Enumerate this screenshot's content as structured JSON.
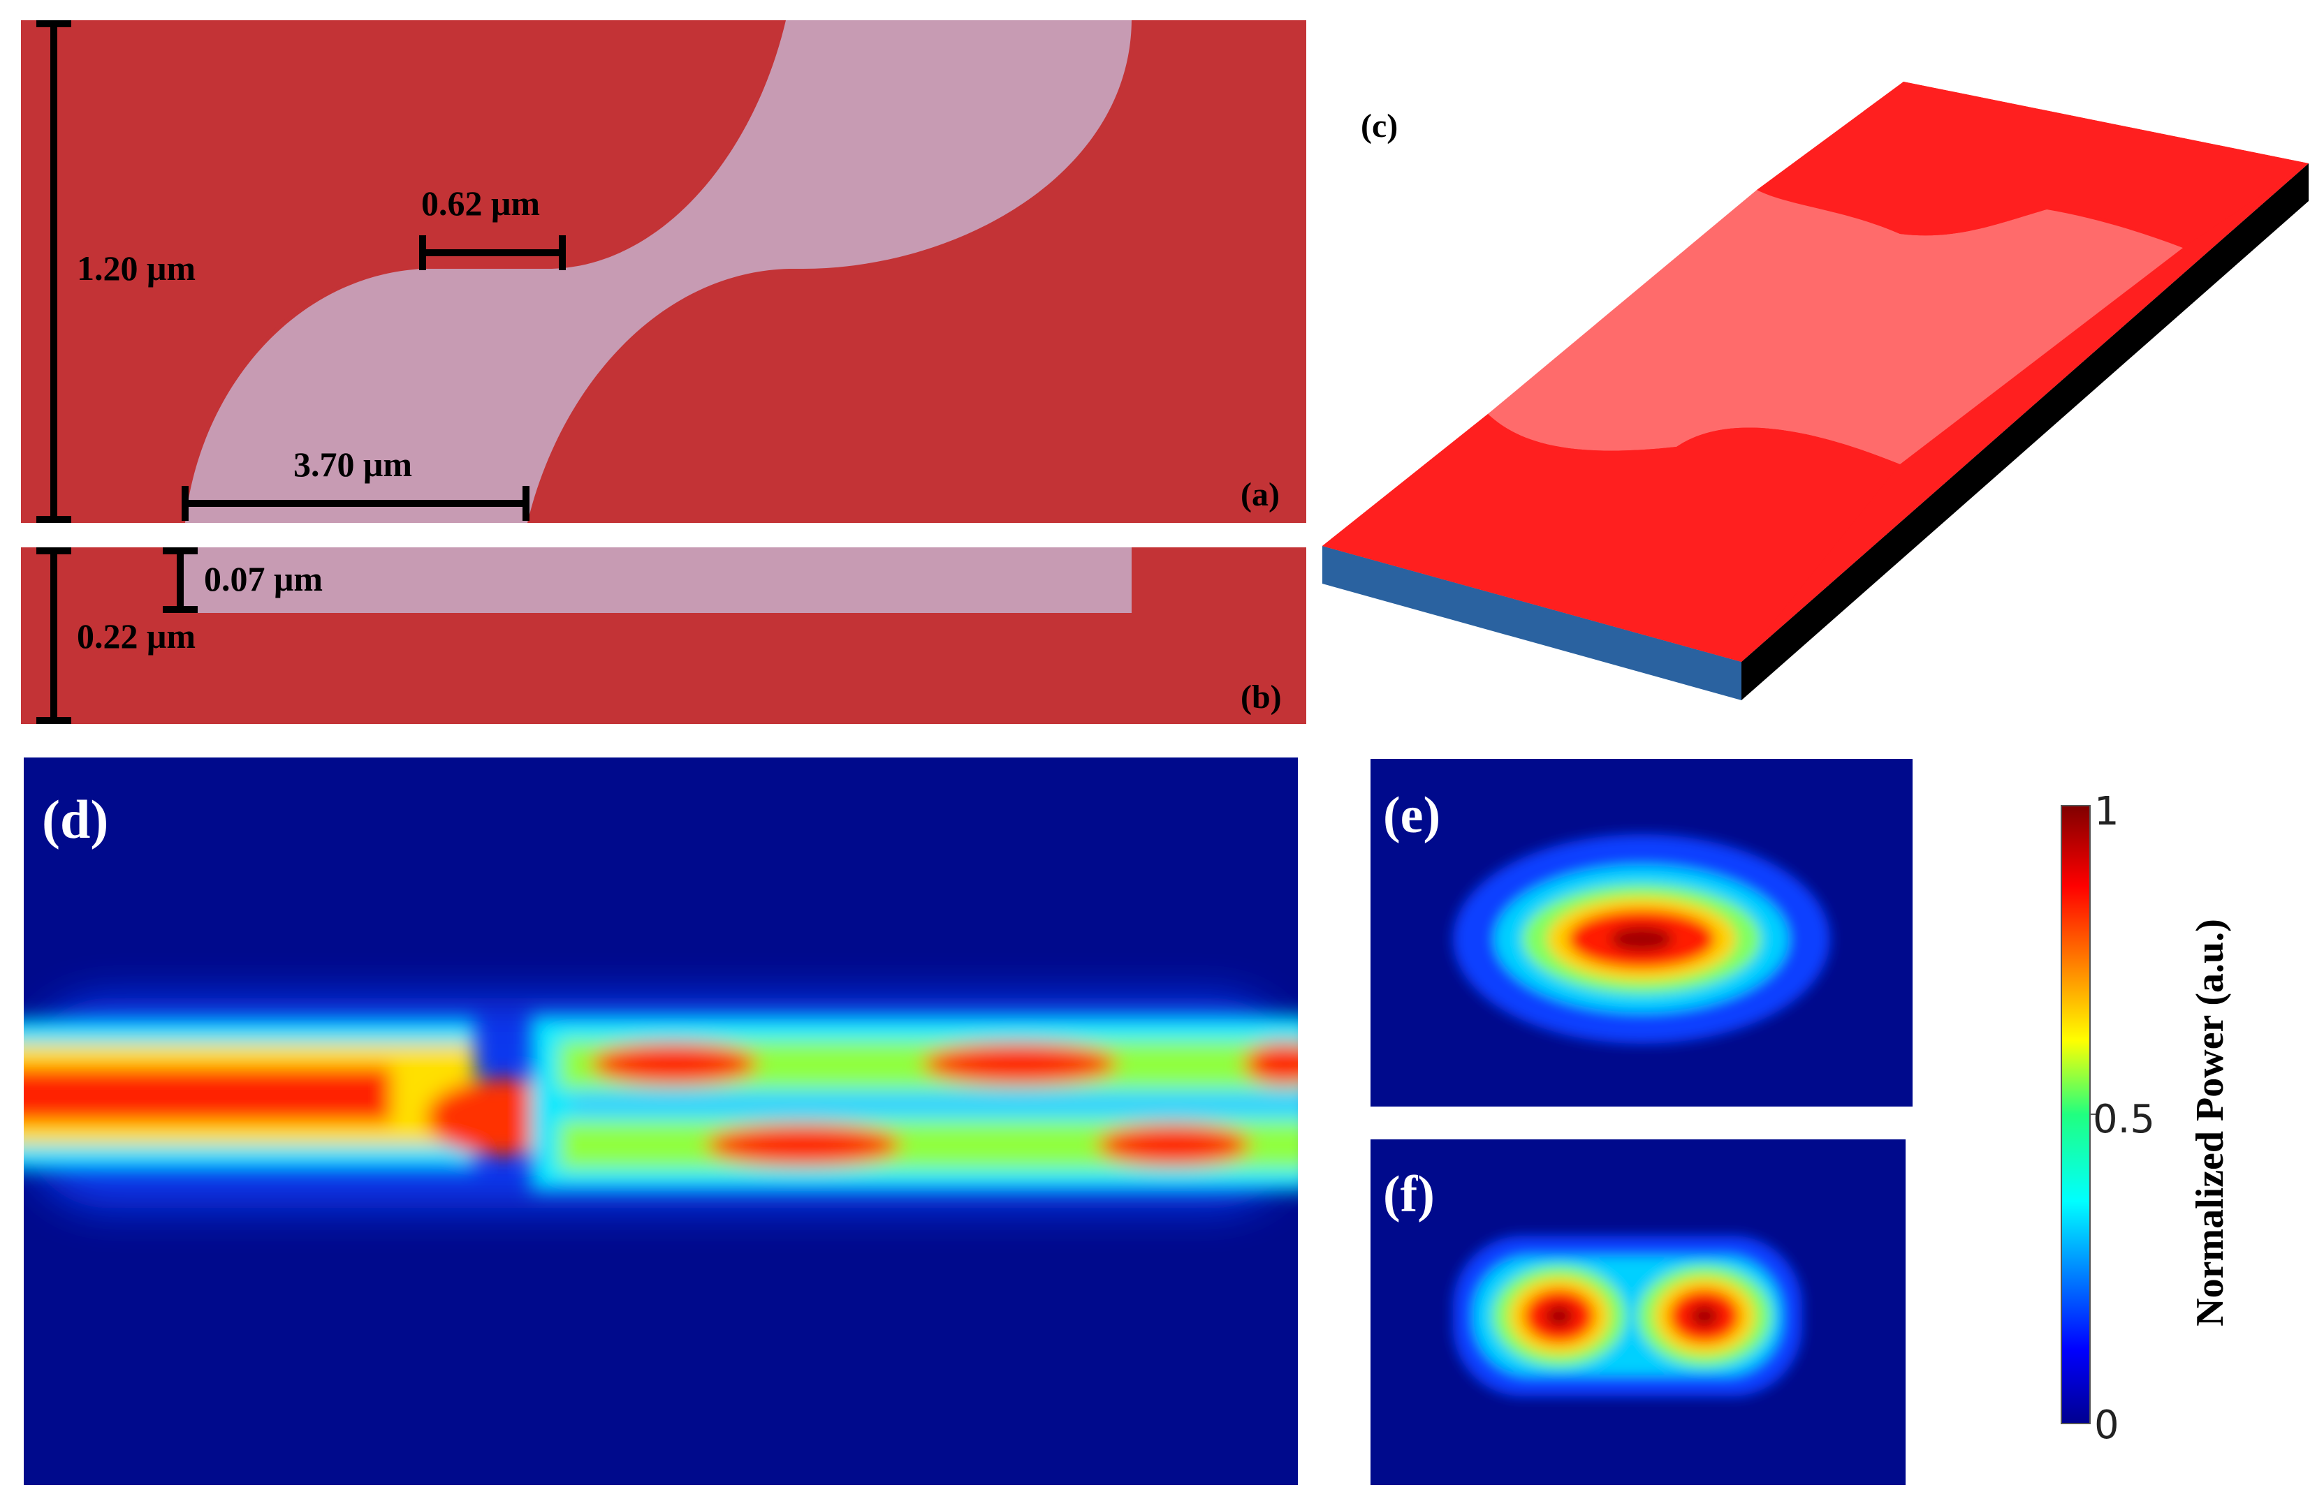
{
  "colors": {
    "cladding": "#C33336",
    "core": "#C79BB3",
    "field_background": "#000A8C",
    "slab_top": "#FF1F1F",
    "slab_etched": "#FF6B6B",
    "slab_front": "#2A62A0",
    "slab_side": "#000000"
  },
  "panel_a": {
    "label": "(a)",
    "dim_height": "1.20 μm",
    "dim_gap": "0.62 μm",
    "dim_width": "3.70 μm"
  },
  "panel_b": {
    "label": "(b)",
    "dim_etch": "0.07 μm",
    "dim_thickness": "0.22 μm"
  },
  "panel_c": {
    "label": "(c)"
  },
  "panel_d": {
    "label": "(d)"
  },
  "panel_e": {
    "label": "(e)"
  },
  "panel_f": {
    "label": "(f)"
  },
  "colorbar": {
    "title": "Normalized Power (a.u.)",
    "tick_top": "1",
    "tick_mid": "0.5",
    "tick_bottom": "0",
    "colormap": "jet"
  }
}
